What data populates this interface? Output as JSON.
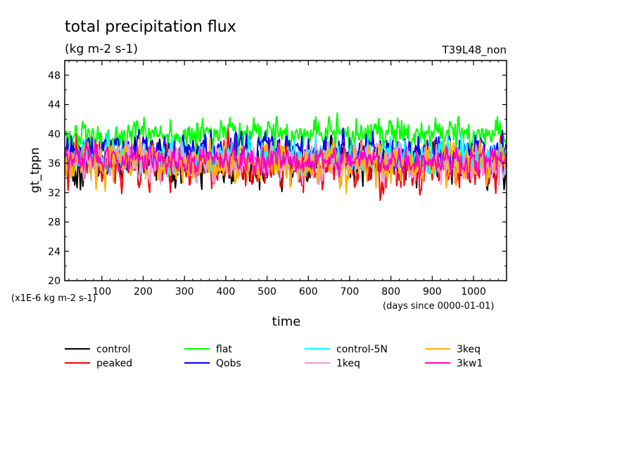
{
  "chart_data": {
    "type": "line",
    "title": "total precipitation flux",
    "units": "(kg m-2 s-1)",
    "experiment": "T39L48_non",
    "ylabel": "gt_tppn",
    "xlabel": "time",
    "yscale_note": "(x1E-6 kg m-2 s-1)",
    "xunits_note": "(days since 0000-01-01)",
    "xlim": [
      10,
      1080
    ],
    "ylim": [
      20,
      50
    ],
    "yticks": [
      20,
      24,
      28,
      32,
      36,
      40,
      44,
      48
    ],
    "xticks": [
      100,
      200,
      300,
      400,
      500,
      600,
      700,
      800,
      900,
      1000
    ],
    "legend_position": "bottom",
    "series": [
      {
        "name": "control",
        "color": "#000000",
        "mean": 36.0,
        "amp": 2.3,
        "seed": 11
      },
      {
        "name": "peaked",
        "color": "#ff0000",
        "mean": 35.8,
        "amp": 2.6,
        "seed": 23
      },
      {
        "name": "flat",
        "color": "#00ff00",
        "mean": 39.6,
        "amp": 1.8,
        "seed": 37
      },
      {
        "name": "Qobs",
        "color": "#0000ff",
        "mean": 37.6,
        "amp": 2.0,
        "seed": 41
      },
      {
        "name": "control-5N",
        "color": "#00ffff",
        "mean": 36.8,
        "amp": 2.0,
        "seed": 53
      },
      {
        "name": "1keq",
        "color": "#e899dc",
        "mean": 36.2,
        "amp": 2.0,
        "seed": 67
      },
      {
        "name": "3keq",
        "color": "#ffb000",
        "mean": 36.0,
        "amp": 2.2,
        "seed": 71
      },
      {
        "name": "3kw1",
        "color": "#ff00c8",
        "mean": 36.4,
        "amp": 1.5,
        "seed": 89
      }
    ]
  }
}
